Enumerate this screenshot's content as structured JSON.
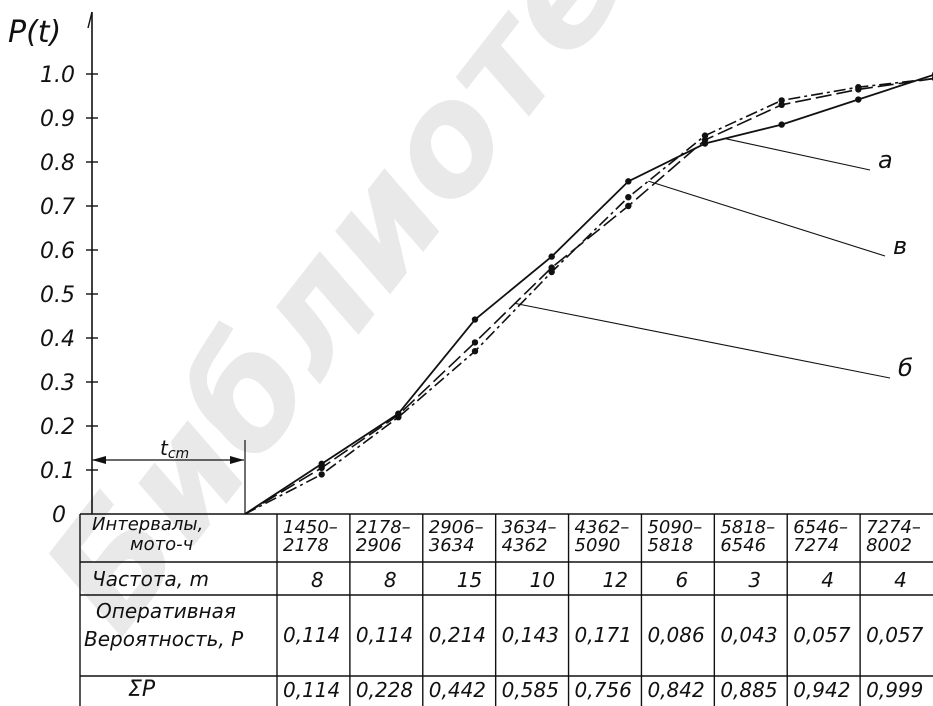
{
  "chart_data": {
    "type": "line",
    "ylabel": "P(t)",
    "ylim": [
      0,
      1.0
    ],
    "y_ticks": [
      "1.0",
      "0.9",
      "0.8",
      "0.7",
      "0.6",
      "0.5",
      "0.4",
      "0.3",
      "0.2",
      "0.1",
      "0"
    ],
    "x_marker_label": "t",
    "x_marker_sub": "cm",
    "x": [
      1450,
      2178,
      2906,
      3634,
      4362,
      5090,
      5818,
      6546,
      7274,
      8002
    ],
    "series": [
      {
        "name": "a",
        "values": [
          0,
          0.114,
          0.228,
          0.442,
          0.585,
          0.756,
          0.842,
          0.885,
          0.942,
          0.999
        ]
      },
      {
        "name": "в",
        "values": [
          0,
          0.09,
          0.22,
          0.37,
          0.55,
          0.72,
          0.86,
          0.94,
          0.97,
          0.99
        ]
      },
      {
        "name": "б",
        "values": [
          0,
          0.105,
          0.225,
          0.39,
          0.56,
          0.7,
          0.85,
          0.93,
          0.965,
          0.99
        ]
      }
    ],
    "table": {
      "row_labels": [
        [
          "Интервалы,",
          "мото-ч"
        ],
        [
          "Частота, m"
        ],
        [
          "Оперативная",
          "Вероятность, P"
        ],
        [
          "ΣP"
        ]
      ],
      "intervals": [
        [
          "1450–",
          "2178"
        ],
        [
          "2178–",
          "2906"
        ],
        [
          "2906–",
          "3634"
        ],
        [
          "3634–",
          "4362"
        ],
        [
          "4362–",
          "5090"
        ],
        [
          "5090–",
          "5818"
        ],
        [
          "5818–",
          "6546"
        ],
        [
          "6546–",
          "7274"
        ],
        [
          "7274–",
          "8002"
        ]
      ],
      "frequency": [
        "8",
        "8",
        "15",
        "10",
        "12",
        "6",
        "3",
        "4",
        "4"
      ],
      "probability": [
        "0,114",
        "0,114",
        "0,214",
        "0,143",
        "0,171",
        "0,086",
        "0,043",
        "0,057",
        "0,057"
      ],
      "cumulative": [
        "0,114",
        "0,228",
        "0,442",
        "0,585",
        "0,756",
        "0,842",
        "0,885",
        "0,942",
        "0,999"
      ]
    }
  },
  "watermark_text": "Библиотека ГГТУ"
}
